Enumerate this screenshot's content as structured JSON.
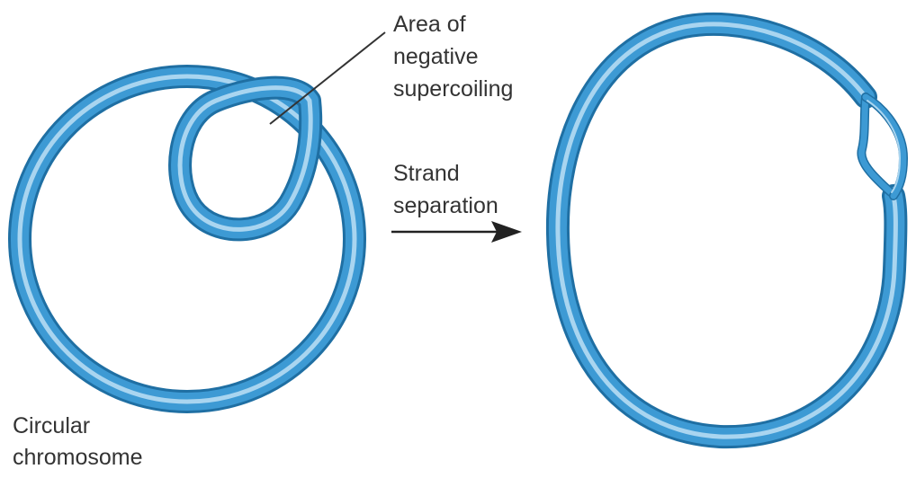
{
  "labels": {
    "supercoil": [
      "Area of",
      "negative",
      "supercoiling"
    ],
    "strand": [
      "Strand",
      "separation"
    ],
    "chromosome": [
      "Circular",
      "chromosome"
    ]
  },
  "colors": {
    "dna_dark": "#1f6fa3",
    "dna": "#3d9ad4",
    "dna_light": "#a9d5f0",
    "text": "#333333",
    "arrow": "#222222"
  }
}
